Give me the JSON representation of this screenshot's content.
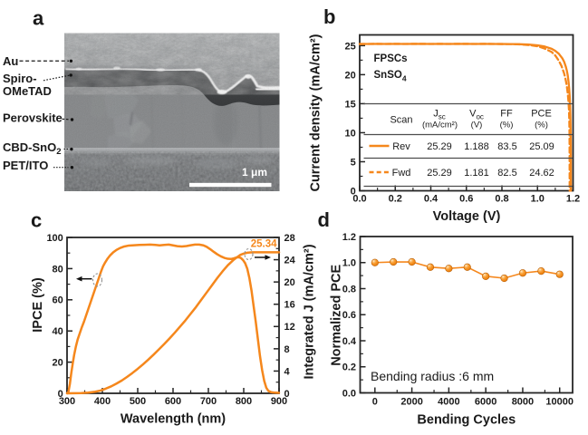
{
  "figure": {
    "background": "#ffffff",
    "panel_letters": {
      "a": "a",
      "b": "b",
      "c": "c",
      "d": "d"
    }
  },
  "colors": {
    "curve_orange": "#f5871c",
    "marker_orange": "#f79424",
    "frame_black": "#262626",
    "text_black": "#1a1a1a",
    "table_rule_gray": "#4d4d4d",
    "annotation_dash_gray": "#909090"
  },
  "panels": {
    "a": {
      "letter": "a",
      "type": "sem-cross-section-image",
      "scale_bar_label": "1 μm",
      "layer_labels": [
        {
          "text": "Au"
        },
        {
          "line1": "Spiro-",
          "line2": "OMeTAD"
        },
        {
          "text": "Perovskite"
        },
        {
          "main": "CBD-SnO",
          "sub": "2"
        },
        {
          "text": "PET/ITO"
        }
      ]
    },
    "b": {
      "letter": "b",
      "inplot_label_1": "FPSCs",
      "inplot_label_2_main": "SnSO",
      "inplot_label_2_sub": "4",
      "table": {
        "headers": {
          "scan": "Scan",
          "jsc_sym": "J",
          "jsc_sub": "sc",
          "jsc_units": "(mA/cm²)",
          "voc_sym": "V",
          "voc_sub": "oc",
          "voc_units": "(V)",
          "ff": "FF",
          "ff_units": "(%)",
          "pce": "PCE",
          "pce_units": "(%)"
        },
        "rows": [
          {
            "scan": "Rev",
            "swatch": "solid-orange-line",
            "jsc": "25.29",
            "voc": "1.188",
            "ff": "83.5",
            "pce": "25.09"
          },
          {
            "scan": "Fwd",
            "swatch": "dashed-orange-line",
            "jsc": "25.29",
            "voc": "1.181",
            "ff": "82.5",
            "pce": "24.62"
          }
        ]
      }
    },
    "c": {
      "letter": "c",
      "annotation_value": "25.34"
    },
    "d": {
      "letter": "d",
      "inplot_label": "Bending radius :6 mm"
    }
  },
  "chart_data": [
    {
      "panel": "b",
      "type": "line",
      "title": "",
      "xlabel": "Voltage (V)",
      "ylabel": "Current density (mA/cm²)",
      "xlim": [
        0,
        1.2
      ],
      "ylim": [
        0,
        26.85
      ],
      "x_ticks": [
        0,
        0.2,
        0.4,
        0.6,
        0.8,
        1.0,
        1.2
      ],
      "x_tick_labels": [
        "0.0",
        "0.2",
        "0.4",
        "0.6",
        "0.8",
        "1.0",
        "1.2"
      ],
      "x_minor_step": 0.1,
      "y_ticks": [
        0,
        5,
        10,
        15,
        20,
        25
      ],
      "y_tick_labels": [
        "0",
        "5",
        "10",
        "15",
        "20",
        "25"
      ],
      "y_minor_step": 2.5,
      "grid": false,
      "legend_position": "in-table",
      "series": [
        {
          "name": "Rev",
          "style": "solid",
          "points": [
            [
              0,
              25.28
            ],
            [
              0.05,
              25.29
            ],
            [
              0.1,
              25.3
            ],
            [
              0.15,
              25.29
            ],
            [
              0.2,
              25.3
            ],
            [
              0.25,
              25.29
            ],
            [
              0.3,
              25.3
            ],
            [
              0.35,
              25.3
            ],
            [
              0.4,
              25.29
            ],
            [
              0.45,
              25.3
            ],
            [
              0.5,
              25.29
            ],
            [
              0.55,
              25.3
            ],
            [
              0.6,
              25.3
            ],
            [
              0.65,
              25.29
            ],
            [
              0.7,
              25.3
            ],
            [
              0.75,
              25.29
            ],
            [
              0.8,
              25.28
            ],
            [
              0.85,
              25.27
            ],
            [
              0.9,
              25.24
            ],
            [
              0.95,
              25.18
            ],
            [
              1.0,
              25.05
            ],
            [
              1.04,
              24.85
            ],
            [
              1.08,
              24.45
            ],
            [
              1.1,
              24.1
            ],
            [
              1.12,
              23.6
            ],
            [
              1.14,
              22.8
            ],
            [
              1.15,
              22.2
            ],
            [
              1.16,
              21.3
            ],
            [
              1.165,
              20.7
            ],
            [
              1.17,
              19.9
            ],
            [
              1.175,
              18.7
            ],
            [
              1.178,
              17.7
            ],
            [
              1.181,
              16.4
            ],
            [
              1.183,
              15.0
            ],
            [
              1.185,
              13.0
            ],
            [
              1.186,
              11.5
            ],
            [
              1.187,
              9.0
            ],
            [
              1.1875,
              7.0
            ],
            [
              1.188,
              0
            ]
          ]
        },
        {
          "name": "Fwd",
          "style": "dashed",
          "points": [
            [
              0,
              25.28
            ],
            [
              0.05,
              25.29
            ],
            [
              0.1,
              25.3
            ],
            [
              0.15,
              25.29
            ],
            [
              0.2,
              25.3
            ],
            [
              0.25,
              25.29
            ],
            [
              0.3,
              25.3
            ],
            [
              0.35,
              25.3
            ],
            [
              0.4,
              25.29
            ],
            [
              0.45,
              25.3
            ],
            [
              0.5,
              25.29
            ],
            [
              0.55,
              25.3
            ],
            [
              0.6,
              25.3
            ],
            [
              0.65,
              25.29
            ],
            [
              0.7,
              25.3
            ],
            [
              0.75,
              25.29
            ],
            [
              0.8,
              25.28
            ],
            [
              0.85,
              25.27
            ],
            [
              0.9,
              25.22
            ],
            [
              0.95,
              25.1
            ],
            [
              1.0,
              24.9
            ],
            [
              1.04,
              24.5
            ],
            [
              1.08,
              23.9
            ],
            [
              1.1,
              23.3
            ],
            [
              1.12,
              22.4
            ],
            [
              1.135,
              21.5
            ],
            [
              1.15,
              20.2
            ],
            [
              1.16,
              18.9
            ],
            [
              1.165,
              18.0
            ],
            [
              1.17,
              16.8
            ],
            [
              1.174,
              15.5
            ],
            [
              1.177,
              14.0
            ],
            [
              1.179,
              12.0
            ],
            [
              1.18,
              10.0
            ],
            [
              1.1805,
              7.5
            ],
            [
              1.181,
              0
            ]
          ]
        }
      ]
    },
    {
      "panel": "c",
      "type": "line",
      "title": "",
      "xlabel": "Wavelength (nm)",
      "ylabel": "IPCE (%)",
      "y2label": "Integrated J (mA/cm²)",
      "xlim": [
        300,
        900
      ],
      "ylim": [
        0,
        100
      ],
      "y2lim": [
        0,
        28
      ],
      "x_ticks": [
        300,
        400,
        500,
        600,
        700,
        800,
        900
      ],
      "x_tick_labels": [
        "300",
        "400",
        "500",
        "600",
        "700",
        "800",
        "900"
      ],
      "x_minor_step": 50,
      "y_ticks": [
        0,
        20,
        40,
        60,
        80,
        100
      ],
      "y_tick_labels": [
        "0",
        "20",
        "40",
        "60",
        "80",
        "100"
      ],
      "y_minor_step": 10,
      "y2_ticks": [
        0,
        4,
        8,
        12,
        16,
        20,
        24,
        28
      ],
      "y2_tick_labels": [
        "0",
        "4",
        "8",
        "12",
        "16",
        "20",
        "24",
        "28"
      ],
      "y2_minor_step": 2,
      "grid": false,
      "annotation": "25.34",
      "series": [
        {
          "name": "IPCE",
          "axis": "left",
          "style": "solid",
          "points": [
            [
              300,
              0
            ],
            [
              304,
              1
            ],
            [
              308,
              6
            ],
            [
              312,
              13
            ],
            [
              316,
              19
            ],
            [
              320,
              24.5
            ],
            [
              325,
              30
            ],
            [
              330,
              34.5
            ],
            [
              336,
              38.5
            ],
            [
              342,
              42.5
            ],
            [
              348,
              46
            ],
            [
              354,
              50
            ],
            [
              360,
              54
            ],
            [
              366,
              58
            ],
            [
              372,
              62
            ],
            [
              378,
              66
            ],
            [
              384,
              70
            ],
            [
              390,
              74
            ],
            [
              396,
              78
            ],
            [
              402,
              81.5
            ],
            [
              408,
              84
            ],
            [
              415,
              86.5
            ],
            [
              422,
              88.5
            ],
            [
              430,
              90.3
            ],
            [
              440,
              92
            ],
            [
              450,
              93.2
            ],
            [
              462,
              94.2
            ],
            [
              475,
              94.8
            ],
            [
              490,
              95
            ],
            [
              505,
              95.2
            ],
            [
              520,
              95.3
            ],
            [
              535,
              95.4
            ],
            [
              550,
              95.2
            ],
            [
              562,
              94.9
            ],
            [
              575,
              95.2
            ],
            [
              588,
              95.4
            ],
            [
              600,
              94.9
            ],
            [
              612,
              94.4
            ],
            [
              625,
              94.2
            ],
            [
              638,
              94.5
            ],
            [
              650,
              95
            ],
            [
              662,
              95.4
            ],
            [
              674,
              95.4
            ],
            [
              686,
              94.9
            ],
            [
              695,
              94
            ],
            [
              705,
              92.5
            ],
            [
              715,
              90.8
            ],
            [
              725,
              89.2
            ],
            [
              735,
              87.9
            ],
            [
              745,
              86.9
            ],
            [
              755,
              86.3
            ],
            [
              765,
              86.2
            ],
            [
              772,
              86.6
            ],
            [
              780,
              87.2
            ],
            [
              786,
              87.3
            ],
            [
              792,
              86.8
            ],
            [
              798,
              85.5
            ],
            [
              804,
              83.5
            ],
            [
              810,
              80
            ],
            [
              816,
              74
            ],
            [
              822,
              66
            ],
            [
              828,
              56
            ],
            [
              834,
              46
            ],
            [
              840,
              35
            ],
            [
              846,
              24
            ],
            [
              852,
              15
            ],
            [
              858,
              8
            ],
            [
              864,
              3.5
            ],
            [
              870,
              1.5
            ],
            [
              878,
              0.7
            ],
            [
              888,
              0.4
            ],
            [
              900,
              0.3
            ]
          ]
        },
        {
          "name": "Integrated J",
          "axis": "right",
          "style": "solid",
          "points": [
            [
              300,
              0
            ],
            [
              320,
              0.02
            ],
            [
              340,
              0.05
            ],
            [
              360,
              0.12
            ],
            [
              380,
              0.28
            ],
            [
              395,
              0.5
            ],
            [
              410,
              0.85
            ],
            [
              425,
              1.25
            ],
            [
              440,
              1.75
            ],
            [
              455,
              2.3
            ],
            [
              470,
              2.95
            ],
            [
              485,
              3.65
            ],
            [
              500,
              4.4
            ],
            [
              515,
              5.2
            ],
            [
              530,
              6.05
            ],
            [
              545,
              6.95
            ],
            [
              560,
              7.9
            ],
            [
              575,
              8.85
            ],
            [
              590,
              9.85
            ],
            [
              605,
              10.9
            ],
            [
              620,
              12.0
            ],
            [
              635,
              13.1
            ],
            [
              650,
              14.3
            ],
            [
              665,
              15.5
            ],
            [
              680,
              16.8
            ],
            [
              695,
              18.1
            ],
            [
              710,
              19.4
            ],
            [
              725,
              20.7
            ],
            [
              740,
              21.9
            ],
            [
              755,
              23.0
            ],
            [
              770,
              23.9
            ],
            [
              780,
              24.4
            ],
            [
              790,
              24.85
            ],
            [
              800,
              25.1
            ],
            [
              810,
              25.25
            ],
            [
              820,
              25.32
            ],
            [
              830,
              25.34
            ],
            [
              850,
              25.34
            ],
            [
              875,
              25.34
            ],
            [
              900,
              25.34
            ]
          ]
        }
      ]
    },
    {
      "panel": "d",
      "type": "scatter-line",
      "title": "",
      "xlabel": "Bending Cycles",
      "ylabel": "Normalized PCE",
      "xlim": [
        -800,
        10700
      ],
      "ylim": [
        0,
        1.2
      ],
      "x_ticks": [
        0,
        2000,
        4000,
        6000,
        8000,
        10000
      ],
      "x_tick_labels": [
        "0",
        "2000",
        "4000",
        "6000",
        "8000",
        "10000"
      ],
      "x_minor_step": 1000,
      "y_ticks": [
        0,
        0.2,
        0.4,
        0.6,
        0.8,
        1.0,
        1.2
      ],
      "y_tick_labels": [
        "0.0",
        "0.2",
        "0.4",
        "0.6",
        "0.8",
        "1.0",
        "1.2"
      ],
      "y_minor_step": 0.1,
      "grid": false,
      "series": [
        {
          "name": "Normalized PCE",
          "style": "ball-markers-with-line",
          "x": [
            0,
            1000,
            2000,
            3000,
            4000,
            5000,
            6000,
            7000,
            8000,
            9000,
            10000
          ],
          "values": [
            1.0,
            1.005,
            1.005,
            0.965,
            0.955,
            0.965,
            0.895,
            0.88,
            0.92,
            0.935,
            0.91
          ]
        }
      ]
    }
  ]
}
